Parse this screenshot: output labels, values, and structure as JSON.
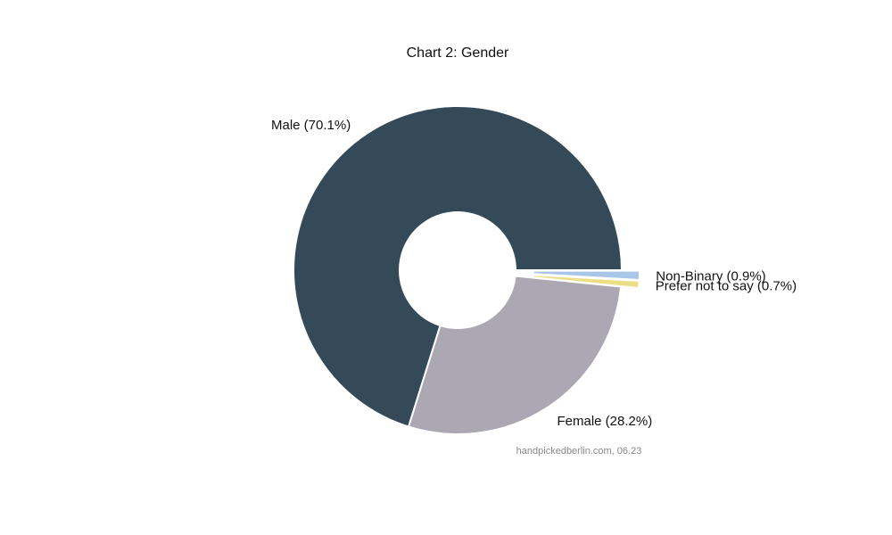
{
  "chart_data": {
    "type": "pie",
    "title": "Chart 2: Gender",
    "source": "handpickedberlin.com, 06.23",
    "donut": true,
    "legend": "none",
    "slices": [
      {
        "label": "Male (70.1%)",
        "category": "Male",
        "value": 70.1,
        "color": "#344a59",
        "exploded": false
      },
      {
        "label": "Female (28.2%)",
        "category": "Female",
        "value": 28.2,
        "color": "#aba8b3",
        "exploded": false
      },
      {
        "label": "Prefer not to say (0.7%)",
        "category": "Prefer not to say",
        "value": 0.7,
        "color": "#ecde84",
        "exploded": true
      },
      {
        "label": "Non-Binary (0.9%)",
        "category": "Non-Binary",
        "value": 0.9,
        "color": "#a9c5e8",
        "exploded": true
      }
    ]
  }
}
